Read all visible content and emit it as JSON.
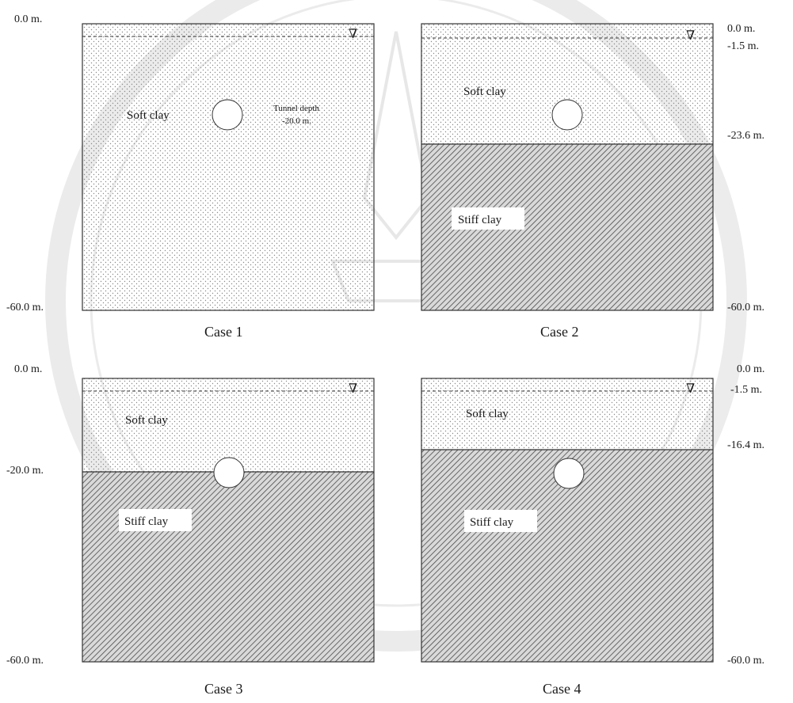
{
  "figure": {
    "panels": [
      {
        "caption": "Case 1",
        "labels_left": [
          "0.0 m.",
          "-60.0 m."
        ],
        "labels_right": [],
        "soft_label": "Soft clay",
        "stiff_label": "",
        "annotation": [
          "Tunnel depth",
          "-20.0 m."
        ]
      },
      {
        "caption": "Case 2",
        "labels_left": [],
        "labels_right": [
          "0.0 m.",
          "-1.5 m.",
          "-23.6 m.",
          "-60.0 m."
        ],
        "soft_label": "Soft clay",
        "stiff_label": "Stiff clay",
        "annotation": []
      },
      {
        "caption": "Case 3",
        "labels_left": [
          "0.0 m.",
          "-20.0 m.",
          "-60.0 m."
        ],
        "labels_right": [],
        "soft_label": "Soft clay",
        "stiff_label": "Stiff clay",
        "annotation": []
      },
      {
        "caption": "Case 4",
        "labels_left": [],
        "labels_right": [
          "0.0 m.",
          "-1.5 m.",
          "-16.4 m.",
          "-60.0 m."
        ],
        "soft_label": "Soft clay",
        "stiff_label": "Stiff clay",
        "annotation": []
      }
    ],
    "water_table_symbol": "∇",
    "colors": {
      "line": "#333333",
      "soft_dot": "#8a8a8a",
      "stiff_hatch": "#4a4a4a",
      "watermark": "#c8c8c8"
    }
  }
}
